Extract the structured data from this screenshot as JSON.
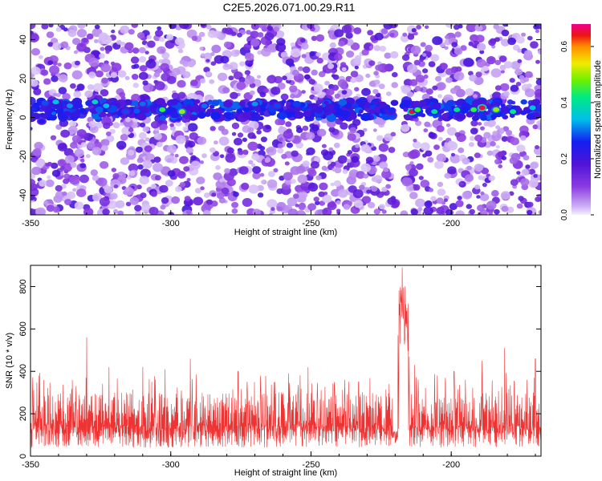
{
  "page": {
    "title": "C2E5.2026.071.00.29.R11"
  },
  "chart_data": [
    {
      "type": "heatmap",
      "title": "C2E5.2026.071.00.29.R11",
      "xlabel": "Height of straight line (km)",
      "ylabel": "Frequency (Hz)",
      "xlim": [
        -350,
        -168
      ],
      "ylim": [
        -50,
        48
      ],
      "x_ticks": [
        {
          "value": -350,
          "label": "-350"
        },
        {
          "value": -300,
          "label": "-300"
        },
        {
          "value": -250,
          "label": "-250"
        },
        {
          "value": -200,
          "label": "-200"
        }
      ],
      "y_ticks": [
        {
          "value": -40,
          "label": "-40"
        },
        {
          "value": -20,
          "label": "-20"
        },
        {
          "value": 0,
          "label": "0"
        },
        {
          "value": 20,
          "label": "20"
        },
        {
          "value": 40,
          "label": "40"
        }
      ],
      "colorbar": {
        "label": "Normalized spectral amplitude",
        "range": [
          0,
          0.68
        ],
        "ticks": [
          {
            "value": 0.0,
            "label": "0.0"
          },
          {
            "value": 0.2,
            "label": "0.2"
          },
          {
            "value": 0.4,
            "label": "0.4"
          },
          {
            "value": 0.6,
            "label": "0.6"
          }
        ]
      },
      "band": {
        "frequency": 4,
        "width": 4,
        "typical_amplitude": 0.3
      },
      "background_amplitude": [
        0.02,
        0.2
      ],
      "gap_x": [
        -220,
        -217
      ],
      "hotspots": [
        {
          "x": -346,
          "y": -2,
          "v": 0.25
        },
        {
          "x": -341,
          "y": 8,
          "v": 0.35
        },
        {
          "x": -336,
          "y": 6,
          "v": 0.32
        },
        {
          "x": -327,
          "y": 8,
          "v": 0.38
        },
        {
          "x": -323,
          "y": 6,
          "v": 0.34
        },
        {
          "x": -316,
          "y": 3,
          "v": 0.28
        },
        {
          "x": -310,
          "y": 7,
          "v": 0.3
        },
        {
          "x": -303,
          "y": 4,
          "v": 0.45
        },
        {
          "x": -296,
          "y": 3,
          "v": 0.5
        },
        {
          "x": -288,
          "y": 6,
          "v": 0.3
        },
        {
          "x": -270,
          "y": 7,
          "v": 0.32
        },
        {
          "x": -262,
          "y": 6,
          "v": 0.28
        },
        {
          "x": -214,
          "y": 3,
          "v": 0.65
        },
        {
          "x": -212,
          "y": 4,
          "v": 0.45
        },
        {
          "x": -206,
          "y": 3,
          "v": 0.4
        },
        {
          "x": -198,
          "y": 4,
          "v": 0.4
        },
        {
          "x": -192,
          "y": 4,
          "v": 0.45
        },
        {
          "x": -189,
          "y": 5,
          "v": 0.66
        },
        {
          "x": -184,
          "y": 4,
          "v": 0.5
        },
        {
          "x": -178,
          "y": 3,
          "v": 0.42
        },
        {
          "x": -171,
          "y": 5,
          "v": 0.35
        }
      ]
    },
    {
      "type": "line",
      "xlabel": "Height of straight line (km)",
      "ylabel": "SNR (10 * v/v)",
      "xlim": [
        -350,
        -168
      ],
      "ylim": [
        0,
        900
      ],
      "x_ticks": [
        {
          "value": -350,
          "label": "-350"
        },
        {
          "value": -300,
          "label": "-300"
        },
        {
          "value": -250,
          "label": "-250"
        },
        {
          "value": -200,
          "label": "-200"
        }
      ],
      "y_ticks": [
        {
          "value": 0,
          "label": "0"
        },
        {
          "value": 200,
          "label": "200"
        },
        {
          "value": 400,
          "label": "400"
        },
        {
          "value": 600,
          "label": "600"
        },
        {
          "value": 800,
          "label": "800"
        }
      ],
      "color": "#ee3333",
      "baseline": 150,
      "noise_band": [
        40,
        360
      ],
      "spikes": [
        {
          "x": -347,
          "y": 380
        },
        {
          "x": -330,
          "y": 560
        },
        {
          "x": -322,
          "y": 420
        },
        {
          "x": -310,
          "y": 420
        },
        {
          "x": -302,
          "y": 410
        },
        {
          "x": -293,
          "y": 460
        },
        {
          "x": -276,
          "y": 400
        },
        {
          "x": -268,
          "y": 380
        },
        {
          "x": -258,
          "y": 390
        },
        {
          "x": -251,
          "y": 420
        },
        {
          "x": -238,
          "y": 360
        },
        {
          "x": -233,
          "y": 350
        },
        {
          "x": -219,
          "y": 570
        },
        {
          "x": -217.5,
          "y": 890
        },
        {
          "x": -216.5,
          "y": 800
        },
        {
          "x": -215,
          "y": 470
        },
        {
          "x": -213,
          "y": 430
        },
        {
          "x": -205,
          "y": 380
        },
        {
          "x": -199,
          "y": 400
        },
        {
          "x": -195,
          "y": 360
        },
        {
          "x": -189,
          "y": 450
        },
        {
          "x": -181,
          "y": 510
        },
        {
          "x": -173,
          "y": 360
        },
        {
          "x": -170,
          "y": 460
        }
      ],
      "dip": {
        "x": [
          -221,
          -219
        ],
        "y": 60
      }
    }
  ]
}
